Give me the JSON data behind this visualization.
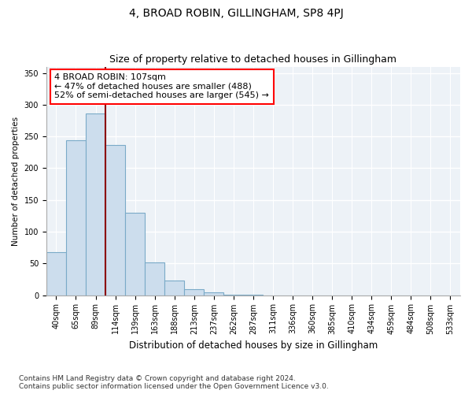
{
  "title": "4, BROAD ROBIN, GILLINGHAM, SP8 4PJ",
  "subtitle": "Size of property relative to detached houses in Gillingham",
  "xlabel": "Distribution of detached houses by size in Gillingham",
  "ylabel": "Number of detached properties",
  "bar_color": "#ccdded",
  "bar_edge_color": "#7aaac8",
  "background_color": "#edf2f7",
  "grid_color": "#ffffff",
  "categories": [
    "40sqm",
    "65sqm",
    "89sqm",
    "114sqm",
    "139sqm",
    "163sqm",
    "188sqm",
    "213sqm",
    "237sqm",
    "262sqm",
    "287sqm",
    "311sqm",
    "336sqm",
    "360sqm",
    "385sqm",
    "410sqm",
    "434sqm",
    "459sqm",
    "484sqm",
    "508sqm",
    "533sqm"
  ],
  "values": [
    68,
    244,
    286,
    237,
    130,
    52,
    23,
    10,
    4,
    1,
    1,
    0,
    0,
    0,
    0,
    0,
    0,
    0,
    0,
    0,
    0
  ],
  "ylim": [
    0,
    360
  ],
  "yticks": [
    0,
    50,
    100,
    150,
    200,
    250,
    300,
    350
  ],
  "property_line_x": 2.5,
  "annotation_line1": "4 BROAD ROBIN: 107sqm",
  "annotation_line2": "← 47% of detached houses are smaller (488)",
  "annotation_line3": "52% of semi-detached houses are larger (545) →",
  "footer_line1": "Contains HM Land Registry data © Crown copyright and database right 2024.",
  "footer_line2": "Contains public sector information licensed under the Open Government Licence v3.0.",
  "title_fontsize": 10,
  "subtitle_fontsize": 9,
  "xlabel_fontsize": 8.5,
  "ylabel_fontsize": 7.5,
  "tick_fontsize": 7,
  "annotation_fontsize": 8,
  "footer_fontsize": 6.5
}
